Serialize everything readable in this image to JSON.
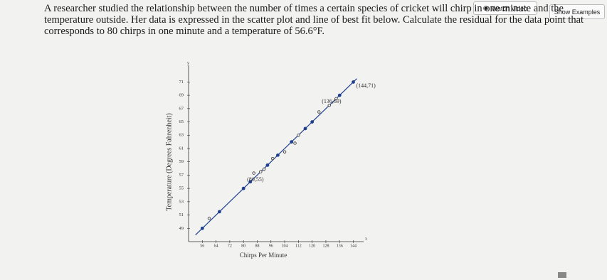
{
  "buttons": {
    "watch_video": "Watch Video",
    "show_examples": "Show Examples"
  },
  "question": "A researcher studied the relationship between the number of times a certain species of cricket will chirp in one minute and the temperature outside. Her data is expressed in the scatter plot and line of best fit below. Calculate the residual for the data point that corresponds to 80 chirps in one minute and a temperature of 56.6°F.",
  "chart_data": {
    "type": "scatter",
    "x_label": "Chirps Per Minute",
    "y_label": "Temperature (Degrees Fahrenheit)",
    "x_symbol": "x",
    "y_symbol": "y",
    "xlim": [
      48,
      150
    ],
    "ylim": [
      47,
      73.5
    ],
    "xticks": [
      56,
      64,
      72,
      80,
      88,
      96,
      104,
      112,
      120,
      128,
      136,
      144
    ],
    "yticks": [
      49,
      51,
      53,
      55,
      57,
      59,
      61,
      63,
      65,
      67,
      69,
      71
    ],
    "series": [
      {
        "color": "#1f3f8f",
        "hollow": false,
        "x": [
          56,
          66,
          80,
          84,
          94,
          100,
          108,
          116,
          120,
          136,
          144
        ],
        "values": [
          49,
          51.5,
          55,
          56,
          58.5,
          60,
          62,
          64,
          65,
          69,
          71
        ]
      },
      {
        "color": "#333333",
        "hollow": true,
        "x": [
          60,
          86,
          90,
          92,
          97,
          104,
          110,
          112,
          124,
          130,
          134
        ],
        "values": [
          50.5,
          57.3,
          57.5,
          57.9,
          59.5,
          60.5,
          61.8,
          63,
          66.5,
          67.5,
          68.5
        ]
      }
    ],
    "fit": {
      "color": "#1f3f8f",
      "x": [
        52,
        146
      ],
      "values": [
        48,
        71.5
      ]
    },
    "annotations": [
      {
        "text": "(144,71)",
        "x": 144,
        "y": 71
      },
      {
        "text": "(136,69)",
        "x": 136,
        "y": 69
      },
      {
        "text": "(80,55)",
        "x": 80,
        "y": 55
      }
    ]
  }
}
